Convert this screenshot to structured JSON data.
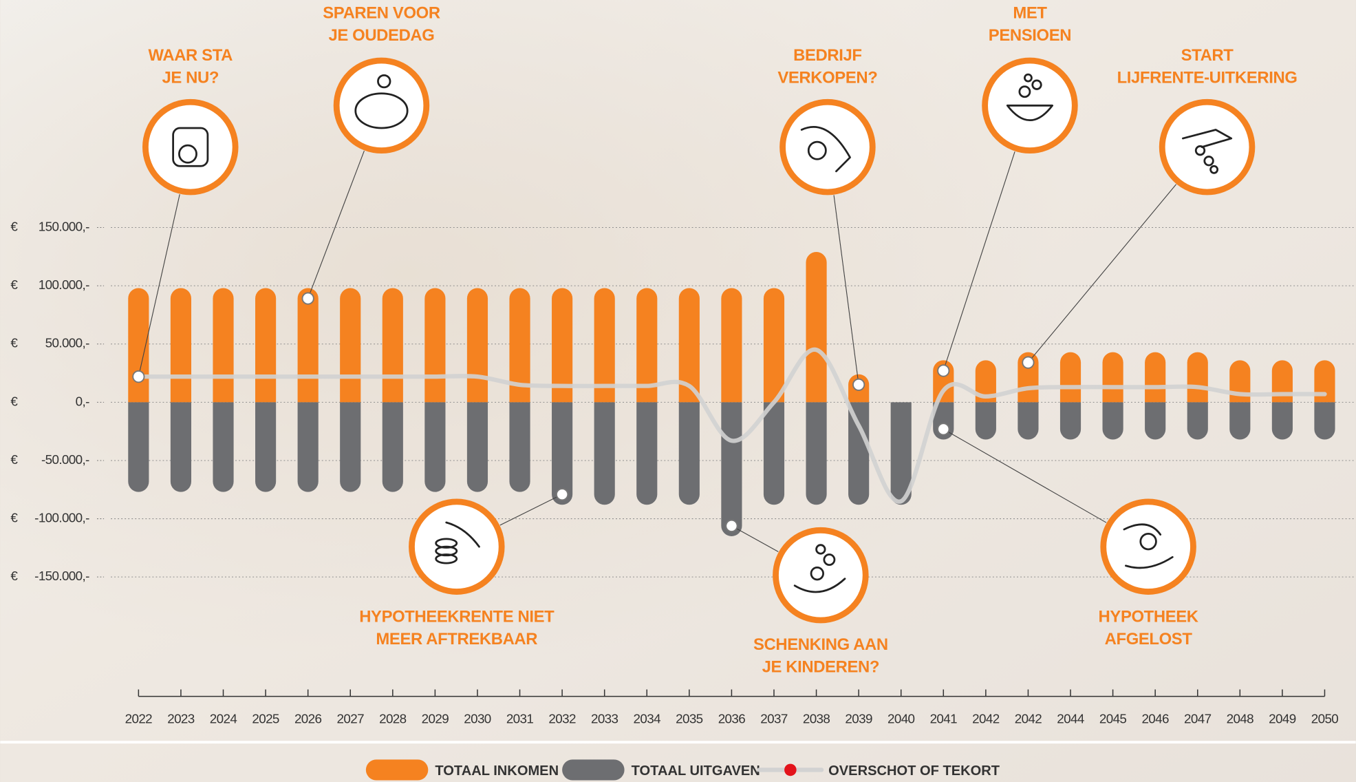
{
  "chart_data": {
    "type": "bar",
    "currency_symbol": "€",
    "categories": [
      "2022",
      "2023",
      "2024",
      "2025",
      "2026",
      "2027",
      "2028",
      "2029",
      "2030",
      "2031",
      "2032",
      "2033",
      "2034",
      "2035",
      "2036",
      "2037",
      "2038",
      "2039",
      "2040",
      "2041",
      "2042",
      "2042",
      "2044",
      "2045",
      "2046",
      "2047",
      "2048",
      "2049",
      "2050"
    ],
    "series": [
      {
        "name": "TOTAAL INKOMEN",
        "color": "#f58220",
        "values": [
          98000,
          98000,
          98000,
          98000,
          98000,
          98000,
          98000,
          98000,
          98000,
          98000,
          98000,
          98000,
          98000,
          98000,
          98000,
          98000,
          129000,
          24000,
          0,
          36000,
          36000,
          43000,
          43000,
          43000,
          43000,
          43000,
          36000,
          36000,
          36000
        ]
      },
      {
        "name": "TOTAAL UITGAVEN",
        "color": "#6d6e71",
        "values": [
          -77000,
          -77000,
          -77000,
          -77000,
          -77000,
          -77000,
          -77000,
          -77000,
          -77000,
          -77000,
          -88000,
          -88000,
          -88000,
          -88000,
          -115000,
          -88000,
          -88000,
          -88000,
          -88000,
          -32000,
          -32000,
          -32000,
          -32000,
          -32000,
          -32000,
          -32000,
          -32000,
          -32000,
          -32000
        ]
      },
      {
        "name": "OVERSCHOT OF TEKORT",
        "type": "line",
        "color": "#d2d2d2",
        "marker_color": "#e3131b",
        "values": [
          22000,
          22000,
          22000,
          22000,
          22000,
          22000,
          22000,
          22000,
          22000,
          15000,
          14000,
          14000,
          14000,
          14000,
          -33000,
          0,
          45000,
          -20000,
          -85000,
          10000,
          5000,
          12000,
          13000,
          13000,
          13000,
          13000,
          7000,
          7000,
          7000
        ]
      }
    ],
    "ylim": [
      -150000,
      150000
    ],
    "yticks": [
      {
        "value": 150000,
        "label": "150.000,-"
      },
      {
        "value": 100000,
        "label": "100.000,-"
      },
      {
        "value": 50000,
        "label": "50.000,-"
      },
      {
        "value": 0,
        "label": "0,-"
      },
      {
        "value": -50000,
        "label": "-50.000,-"
      },
      {
        "value": -100000,
        "label": "-100.000,-"
      },
      {
        "value": -150000,
        "label": "-150.000,-"
      }
    ],
    "grid": true,
    "annotations": [
      {
        "lines": [
          "WAAR STA",
          "JE NU?"
        ]
      },
      {
        "lines": [
          "SPAREN VOOR",
          "JE OUDEDAG"
        ]
      },
      {
        "lines": [
          "BEDRIJF",
          "VERKOPEN?"
        ]
      },
      {
        "lines": [
          "MET",
          "PENSIOEN"
        ]
      },
      {
        "lines": [
          "START",
          "LIJFRENTE-UITKERING"
        ]
      },
      {
        "lines": [
          "HYPOTHEEKRENTE NIET",
          "MEER AFTREKBAAR"
        ]
      },
      {
        "lines": [
          "SCHENKING AAN",
          "JE KINDEREN?"
        ]
      },
      {
        "lines": [
          "HYPOTHEEK",
          "AFGELOST"
        ]
      }
    ]
  }
}
